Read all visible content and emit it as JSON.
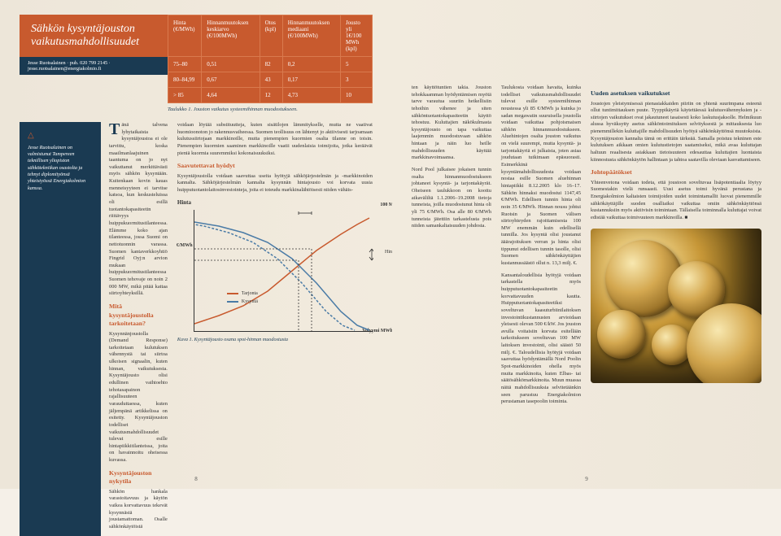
{
  "header": {
    "title_line1": "Sähkön kysyntäjouston",
    "title_line2": "vaikutusmahdollisuudet",
    "author_line": "Jesse Ruotsalainen · puh. 020 799 2145 · jesse.ruotsalainen@energiakolmio.fi"
  },
  "table": {
    "columns": [
      "Hinta (€/MWh)",
      "Hinnanmuutoksen keskiarvo (€/100MWh)",
      "Otos (kpl)",
      "Hinnanmuutoksen mediaani (€/100MWh)",
      "Jousto yli 1€/100 MWh (kpl)"
    ],
    "rows": [
      [
        "75–80",
        "0,51",
        "82",
        "0,2",
        "5"
      ],
      [
        "80–84,99",
        "0,67",
        "43",
        "0,17",
        "3"
      ],
      [
        "> 85",
        "4,64",
        "12",
        "4,73",
        "10"
      ]
    ],
    "caption": "Taulukko 1. Jouston vaikutus systeemihinnan muodostukseen.",
    "header_bg": "#c85a2e",
    "border_color": "#d97a4e",
    "text_color": "#ffffff"
  },
  "bio": {
    "triangle": "△",
    "text": "Jesse Ruotsalainen on valmistunut Tampereen teknillisen yliopiston sähkötekniikan osastolta ja tehnyt diplomityönsä yhteistyössä Energiakolmion kanssa."
  },
  "left_page": {
    "col1": {
      "dropcap": "T",
      "p1": "änä talvena lyhytaikaista kysyntäjoustoa ei ole tarvittu, koska maailmanlaajuinen taantuma on jo nyt vaikuttanut merkittävästi myös sähkön kysyntään. Kuitenkaan kovin kauas menneisyyteen ei tarvitse katsoa, kun keskusteluissa oli esillä tuotantokapasiteetin riittävyys huippukuormitustilanteessa. Elämme koko ajan tilanteessa, jossa Suomi on nettotuonnin varassa. Suomen kantaverkkoyhtiö Fingrid Oyj:n arvion mukaan huippukuormitustilanteessa Suomen tehovaje on noin 2 000 MW, mikä pitää kattaa siirtoyhteyksillä.",
      "h1": "Mitä kysyntäjoustolla tarkoitetaan?",
      "p2": "Kysynnänjoustolla (Demand Response) tarkoitetaan kulutuksen vähennystä tai siirtoa ulkoisen signaalin, kuten hinnan, vaikutuksesta. Kysyntäjousto olisi edullinen vaihtoehto tehotasapainon rajallisuuteen varauduttaessa, kuten jäljempänä artikkelissa on esitetty. Kysyntäjouston todelliset vaikutusmahdollisuudet tulevat esille hintapiikkitilanteissa, joita on havainnoitu oheisessa kuvassa.",
      "h2": "Kysyntäjouston nykytila",
      "p3": "Sähkön hankala varastoitavuus ja käytön vaikea korvattavuus tekevät kysynnästä joustamattoman. Osalle sähkönkäytöistä"
    },
    "col2": {
      "p1": "voidaan löytää substituutteja, kuten sisätilojen lämmitykselle, mutta ne vaativat huomioonoton jo rakennusvaiheessa. Suomen teollisuus on lähtenyt jo aktiivisesti tarjoamaan kulutussiirtojaan markkinoille, mutta pienempien kuormien osalta tilanne on toisin. Pienempien kuormien saaminen markkinoille vaatii uudenlaisia toimijoita, jotka keräävät pieniä kuormia suuremmiksi kokonaisuuksiksi.",
      "h1": "Saavutettavat hyödyt",
      "p2": "Kysyntäjoustolla voidaan saavuttaa useita hyötyjä sähköjärjestelmän ja -markkinoiden kannalta. Sähköjärjestelmän kannalta kysynnän hintajousto voi korvata uusia huipputuotantolaitosinvestointeja, joita ei toteudu markkinalähtöisesti niiden vähäis-"
    },
    "page_number": "8"
  },
  "right_page": {
    "col1": {
      "p1": "ten käyttötuntien takia. Jouston tehokkaamman hyödyntämisen myötä tarve varautua suuriin hetkellisiin tehoihin vähenee ja siten sähköntuotantokapasiteetin käyttö tehostuu. Kuluttajien näkökulmasta kysyntäjousto on tapa vaikuttaa laajemmin muodostuvaan sähkön hintaan ja näin luo heille mahdollisuuden käyttää markkinavoimaansa.",
      "p2": "Nord Pool julkaisee jokaisen tunnin osalta hinnanmuodostukseen johtaneet kysyntä- ja tarjontakäyrät. Oheiseen taulukkoon on koottu aikaväliltä 1.1.2006–19.2008 tietoja tunneista, joilla muodostunut hinta oli yli 75 €/MWh. Osa alle 80 €/MWh tunneista jätettiin tarkastelusta pois niiden samankaltaisuuden johdosta."
    },
    "col2": {
      "p1": "Taulukosta voidaan havaita, kuinka todelliset vaikutusmahdollisuudet tulevat esille systeemihinnan noustessa yli 85 €/MWh ja kuinka jo sadan megawatin suuruisella joustolla voidaan vaikuttaa pohjoismaisen sähkön hinnanmuodostukseen. Aluehintojen osalta jouston vaikutus on vielä suurempi, mutta kysyntä- ja tarjontakäyriä ei julkaista, joten asiaa joudutaan tutkimaan epäsuorasti. Esimerkkinä kysyntämahdollisuudesta voidaan nostaa esille Suomen aluehinnan hintapiikki 8.12.2005 klo 16–17. Sähkön hinnaksi muodostui 1147,45 €/MWh. Edellisen tunnin hinta oli noin 35 €/MWh. Hinnan nousu johtui Ruotsin ja Suomen välisen siirtoyhteyden rajoittamisesta 100 MW enemmän kuin edellisellä tunnilla. Jos kysyntä olisi joustanut ääärajoituksen verran ja hinta olisi tippunut edellisen tunnin tasolle, olisi Suomen sähkönkäyttäjien kustannussäästö ollut n. 13,3 milj. €.",
      "p2": "Kansantaloudellisia hyötyjä voidaan tarkastella myös huipputuotantokapasiteetin korvattavuuden kautta. Huipputuotantokapasiteetiksi soveltuvan kaasuturbiinilaitoksen investointikustannusten arvioidaan yleisesti olevan 500 €/kW. Jos jouston avulla voitaisiin korvata esitellään tarkoitukseen soveltuvan 100 MW laitoksen investointi, olisi säästö 50 milj. €. Taloudellisia hyötyjä voidaan saavuttaa hyödyntämällä Nord Poolin Spot-markkinoiden ohella myös muita markkinoita, kuten Elbas- tai säätösähkömarkkinoita. Muun muassa näitä mahdollisuuksia selvitetäänkin seen parustuu Energiakolmion perustaman tasepoolin toiminta."
    },
    "col3": {
      "h1": "Uuden asetuksen vaikutukset",
      "p1": "Joustojen yleistymisessä pienasiakkaiden piiriin on yhtenä suurimpana esteenä ollut tuntimittauksen puute. Tyyppikäyriä käytettäessä kulutusvähennyksien ja -siirtojen vaikutukset ovat jakautuneet tasaisesti koko laskutusjaksolle. Helmikuun alussa hyväksytty asetus sähköntoimituksen selvityksestä ja mittauksesta luo pienemmillekin kuluttajille mahdollisuuden hyötyä sähkönkäyttönsä muutoksista. Kysyntäjouston kannalta tämä on erittäin tärkeää. Samalla poistuu tekninen este kulutuksen aikkaan omien kulutustietojen saatamiseksi, mikä avaa kuluttajan haltuun reaalisesta asiakkaan tietoisuuteen edesauttaa kuluttajien luontaista kiinnostusta sähkönkäytön hallintaan ja tahtoa saatavilla oleviaan kasvattamiseen.",
      "h2": "Johtopäätökset",
      "p2": "Yhteenvetona voidaan todeta, että joustoon soveltuvaa lisäpotentiaalia löytyy Suomestakin vielä runsaasti. Uusi asetus toimi hyvänä perustana ja Energiakolmion kaltaisten toimijoiden uudet toimintamallit luovat pienemmille sähkökäyttäjille suoden osalliaiksi vaikuttaa omiin sähkönkäyttönsä kustannuksiin myös aktiivisin toimintaan. Tällaisella toiminnalla kuluttajat voivat edistää vaikuttaa toimivuuteen markkinoilla. ■"
    },
    "page_number": "9"
  },
  "chart": {
    "type": "line",
    "title_top_left": "Hinta",
    "y_left_label": "€/MWh",
    "y_right_top": "100 MWh/h",
    "annot_right": "Hinnan muutos",
    "x_right_label": "Volyymi\nMWh/h",
    "legend": [
      {
        "label": "Tarjonta",
        "color": "#c85a2e"
      },
      {
        "label": "Kysyntä",
        "color": "#4a7ba6"
      }
    ],
    "supply": [
      [
        0,
        140
      ],
      [
        30,
        130
      ],
      [
        60,
        118
      ],
      [
        90,
        100
      ],
      [
        120,
        75
      ],
      [
        150,
        50
      ],
      [
        180,
        30
      ],
      [
        200,
        18
      ],
      [
        215,
        10
      ]
    ],
    "demand": [
      [
        0,
        15
      ],
      [
        30,
        20
      ],
      [
        60,
        28
      ],
      [
        90,
        40
      ],
      [
        120,
        60
      ],
      [
        150,
        90
      ],
      [
        180,
        125
      ],
      [
        200,
        142
      ],
      [
        215,
        148
      ]
    ],
    "supply_color": "#c85a2e",
    "demand_color": "#4a7ba6",
    "dash_color": "#333333",
    "caption": "Kuva 1. Kysyntäjousto osana spot-hinnan muodostusta"
  },
  "colors": {
    "orange": "#c85a2e",
    "navy": "#1a3a52",
    "page_bg": "#f2ebde"
  }
}
